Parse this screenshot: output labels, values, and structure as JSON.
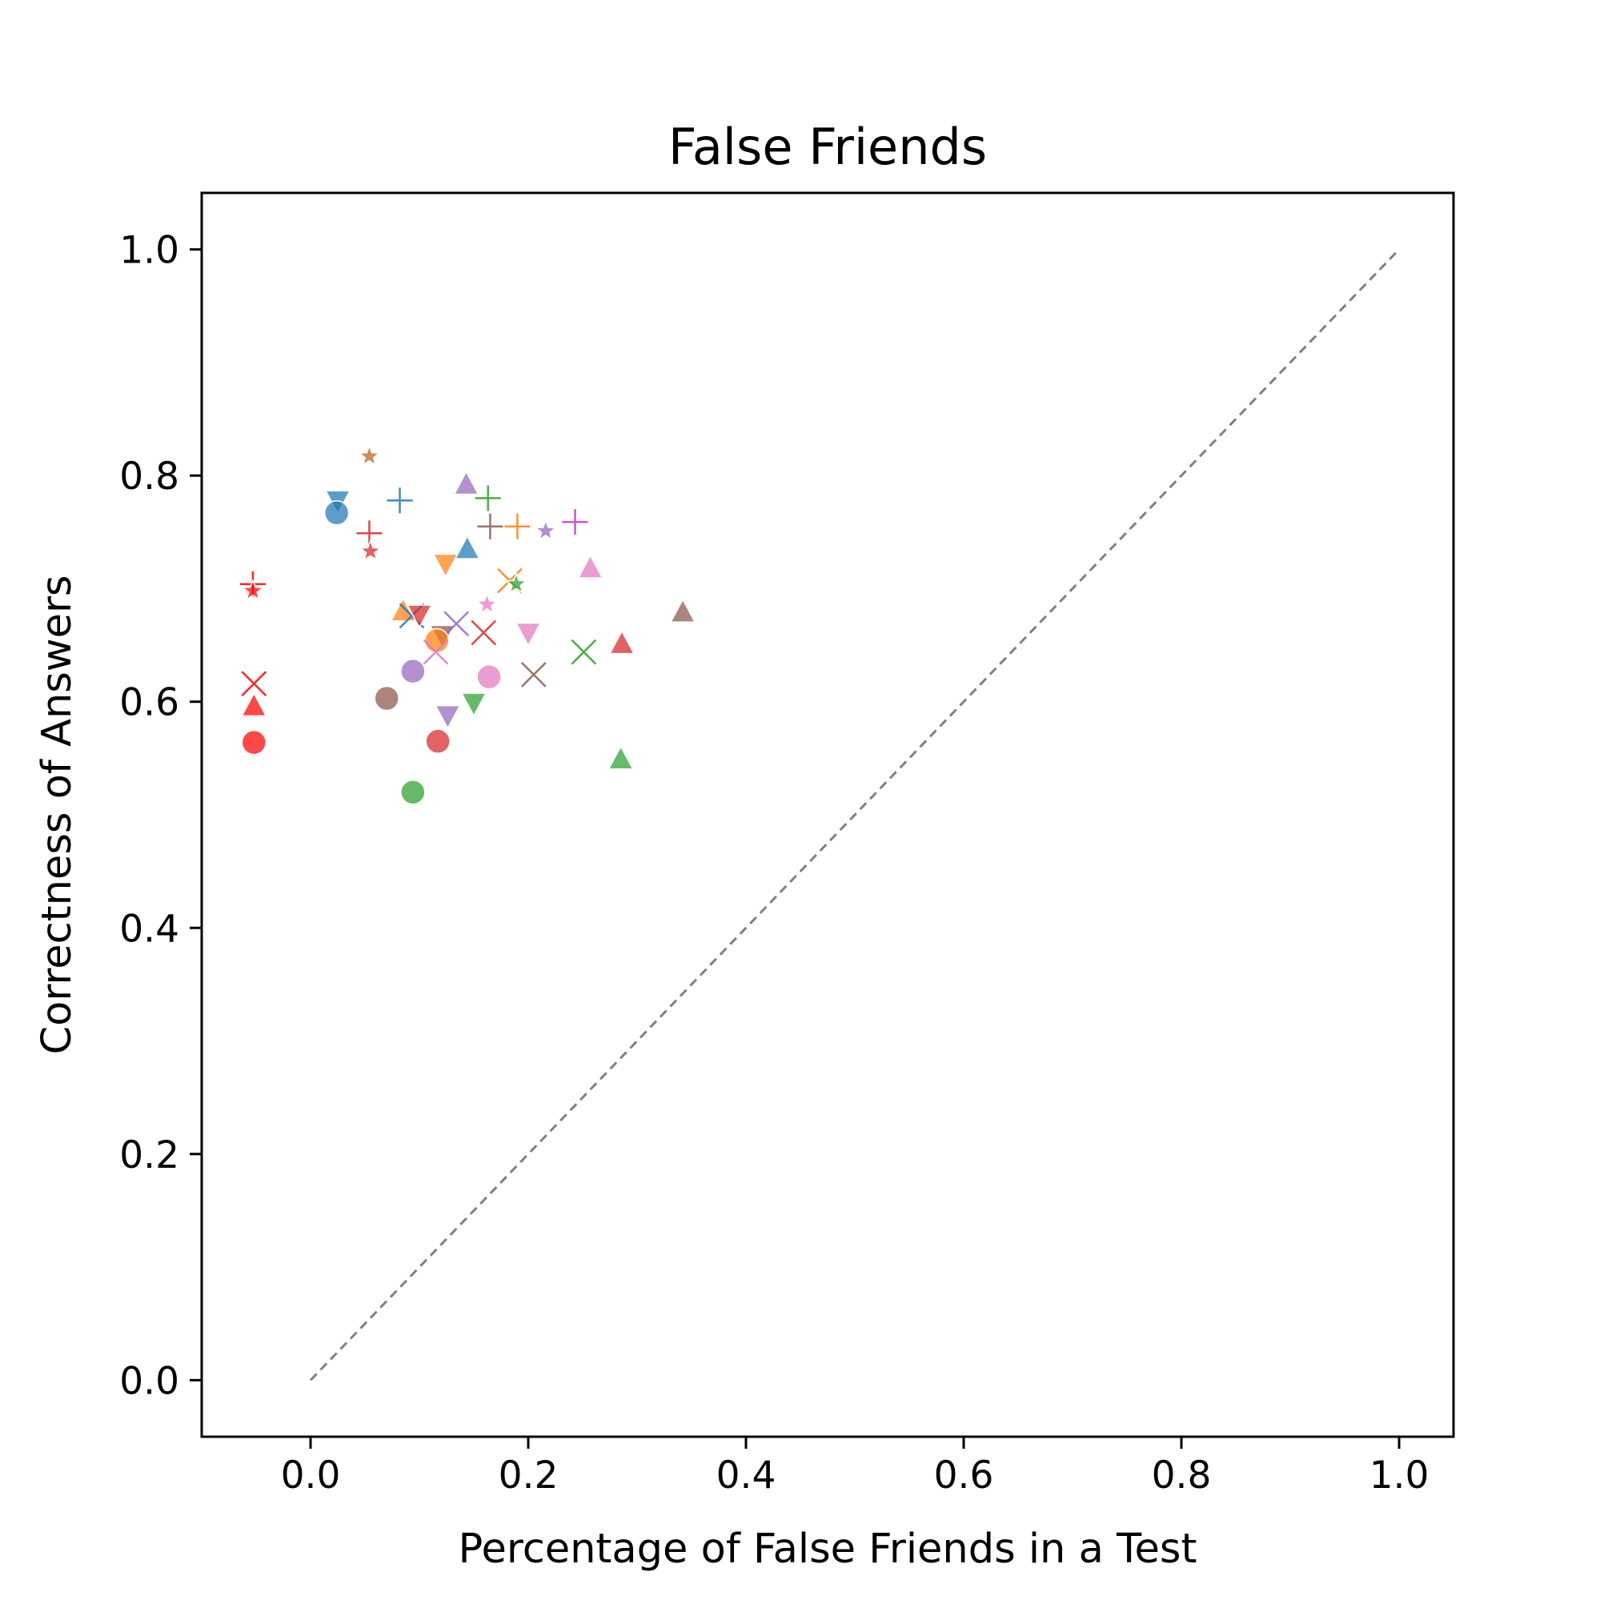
{
  "chart_data": {
    "type": "scatter",
    "title": "False Friends",
    "xlabel": "Percentage of False Friends in a Test",
    "ylabel": "Correctness of Answers",
    "xlim": [
      -0.1,
      1.05
    ],
    "ylim": [
      -0.05,
      1.05
    ],
    "x_ticks": [
      "0.0",
      "0.2",
      "0.4",
      "0.6",
      "0.8",
      "1.0"
    ],
    "y_ticks": [
      "0.0",
      "0.2",
      "0.4",
      "0.6",
      "0.8",
      "1.0"
    ],
    "grid": false,
    "legend": "none",
    "reference_line": {
      "style": "dashed",
      "color": "#808080",
      "from": [
        0,
        0
      ],
      "to": [
        1,
        1
      ]
    },
    "points": [
      {
        "x": 0.054,
        "y": 0.817,
        "marker": "star",
        "color": "#b5651d"
      },
      {
        "x": 0.025,
        "y": 0.778,
        "marker": "triangle-down",
        "color": "#1f77b4"
      },
      {
        "x": 0.024,
        "y": 0.767,
        "marker": "circle",
        "color": "#1f77b4"
      },
      {
        "x": 0.082,
        "y": 0.778,
        "marker": "plus",
        "color": "#1f77b4"
      },
      {
        "x": 0.054,
        "y": 0.749,
        "marker": "plus",
        "color": "#d62728"
      },
      {
        "x": 0.055,
        "y": 0.733,
        "marker": "star",
        "color": "#d62728"
      },
      {
        "x": 0.143,
        "y": 0.792,
        "marker": "triangle-up",
        "color": "#9467bd"
      },
      {
        "x": 0.163,
        "y": 0.78,
        "marker": "plus",
        "color": "#2ca02c"
      },
      {
        "x": 0.165,
        "y": 0.755,
        "marker": "plus",
        "color": "#8c564b"
      },
      {
        "x": 0.19,
        "y": 0.755,
        "marker": "plus",
        "color": "#ff7f0e"
      },
      {
        "x": 0.216,
        "y": 0.751,
        "marker": "star",
        "color": "#9467bd"
      },
      {
        "x": 0.243,
        "y": 0.759,
        "marker": "plus",
        "color": "#c239b3"
      },
      {
        "x": 0.144,
        "y": 0.735,
        "marker": "triangle-up",
        "color": "#1f77b4"
      },
      {
        "x": 0.124,
        "y": 0.722,
        "marker": "triangle-down",
        "color": "#ff7f0e"
      },
      {
        "x": 0.257,
        "y": 0.718,
        "marker": "triangle-up",
        "color": "#e377c2"
      },
      {
        "x": -0.053,
        "y": 0.704,
        "marker": "plus",
        "color": "#ff0000"
      },
      {
        "x": -0.053,
        "y": 0.698,
        "marker": "star",
        "color": "#ff0000"
      },
      {
        "x": 0.183,
        "y": 0.707,
        "marker": "x",
        "color": "#ff7f0e"
      },
      {
        "x": 0.189,
        "y": 0.704,
        "marker": "star",
        "color": "#2ca02c"
      },
      {
        "x": 0.162,
        "y": 0.686,
        "marker": "star",
        "color": "#e377c2"
      },
      {
        "x": 0.085,
        "y": 0.68,
        "marker": "triangle-up",
        "color": "#ff7f0e"
      },
      {
        "x": 0.093,
        "y": 0.676,
        "marker": "x",
        "color": "#1f77b4"
      },
      {
        "x": 0.1,
        "y": 0.677,
        "marker": "triangle-down",
        "color": "#d62728"
      },
      {
        "x": 0.121,
        "y": 0.659,
        "marker": "triangle-down",
        "color": "#8c564b"
      },
      {
        "x": 0.134,
        "y": 0.669,
        "marker": "x",
        "color": "#9467bd"
      },
      {
        "x": 0.159,
        "y": 0.661,
        "marker": "x",
        "color": "#d62728"
      },
      {
        "x": 0.2,
        "y": 0.661,
        "marker": "triangle-down",
        "color": "#e377c2"
      },
      {
        "x": 0.342,
        "y": 0.679,
        "marker": "triangle-up",
        "color": "#8c564b"
      },
      {
        "x": 0.116,
        "y": 0.654,
        "marker": "circle",
        "color": "#ff7f0e"
      },
      {
        "x": 0.115,
        "y": 0.644,
        "marker": "x",
        "color": "#e377c2"
      },
      {
        "x": 0.251,
        "y": 0.644,
        "marker": "x",
        "color": "#2ca02c"
      },
      {
        "x": 0.286,
        "y": 0.651,
        "marker": "triangle-up",
        "color": "#d62728"
      },
      {
        "x": 0.094,
        "y": 0.627,
        "marker": "circle",
        "color": "#9467bd"
      },
      {
        "x": 0.164,
        "y": 0.622,
        "marker": "circle",
        "color": "#e377c2"
      },
      {
        "x": 0.205,
        "y": 0.624,
        "marker": "x",
        "color": "#8c564b"
      },
      {
        "x": -0.052,
        "y": 0.616,
        "marker": "x",
        "color": "#ff0000"
      },
      {
        "x": -0.052,
        "y": 0.596,
        "marker": "triangle-up",
        "color": "#ff0000"
      },
      {
        "x": 0.07,
        "y": 0.603,
        "marker": "circle",
        "color": "#8c564b"
      },
      {
        "x": 0.15,
        "y": 0.599,
        "marker": "triangle-down",
        "color": "#2ca02c"
      },
      {
        "x": 0.126,
        "y": 0.588,
        "marker": "triangle-down",
        "color": "#9467bd"
      },
      {
        "x": -0.052,
        "y": 0.564,
        "marker": "circle",
        "color": "#ff0000"
      },
      {
        "x": 0.117,
        "y": 0.565,
        "marker": "circle",
        "color": "#d62728"
      },
      {
        "x": 0.285,
        "y": 0.549,
        "marker": "triangle-up",
        "color": "#2ca02c"
      },
      {
        "x": 0.094,
        "y": 0.52,
        "marker": "circle",
        "color": "#2ca02c"
      }
    ]
  }
}
